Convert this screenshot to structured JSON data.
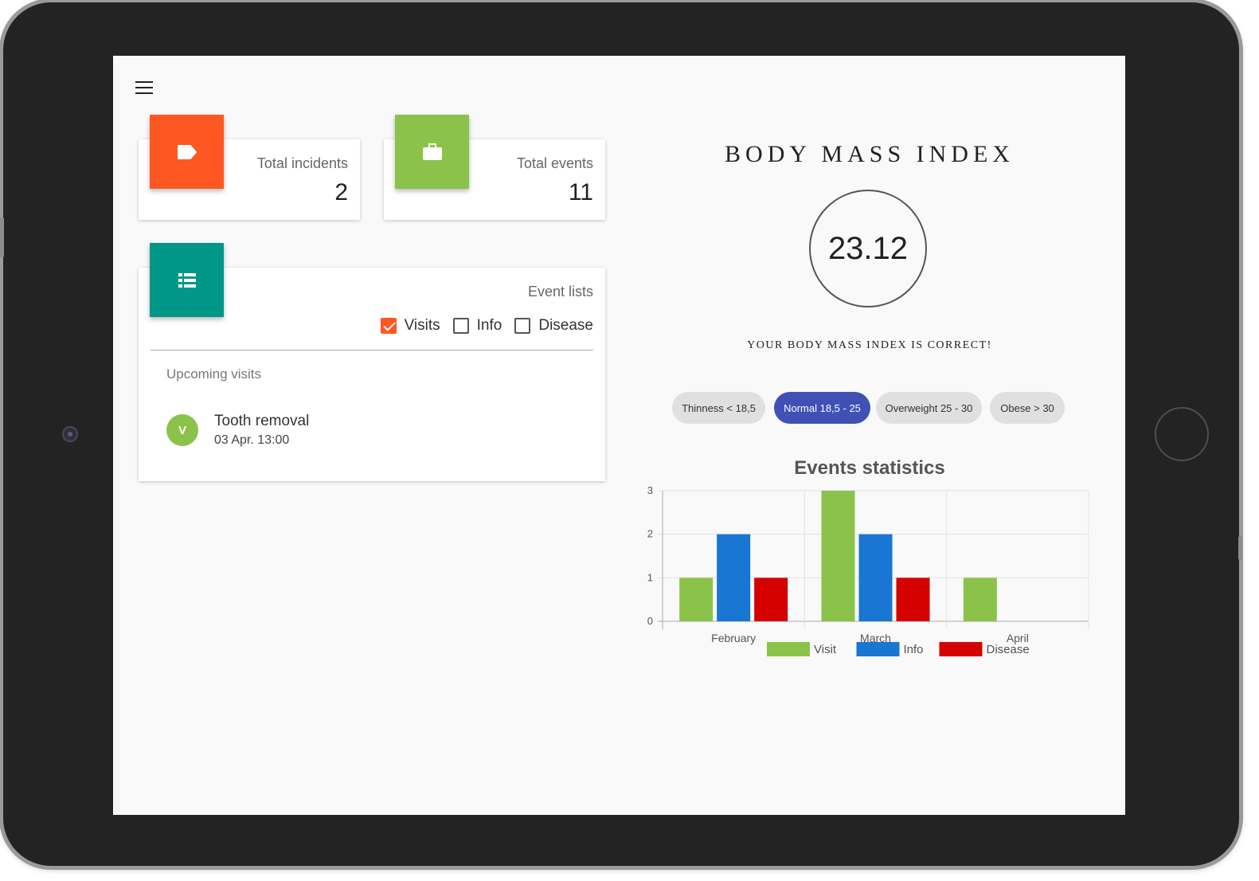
{
  "device": {
    "camera_icon": "camera-icon",
    "home_button_icon": "home-button-icon"
  },
  "header": {
    "menu_icon": "hamburger-menu-icon"
  },
  "stats": [
    {
      "label": "Total incidents",
      "value": "2",
      "icon": "tag-icon",
      "color": "#fe5722"
    },
    {
      "label": "Total events",
      "value": "11",
      "icon": "briefcase-icon",
      "color": "#8bc34a"
    }
  ],
  "event_lists": {
    "title": "Event lists",
    "icon": "list-icon",
    "color": "#009688",
    "filters": [
      {
        "label": "Visits",
        "checked": true
      },
      {
        "label": "Info",
        "checked": false
      },
      {
        "label": "Disease",
        "checked": false
      }
    ],
    "section_title": "Upcoming visits",
    "items": [
      {
        "avatar": "V",
        "avatar_color": "#8bc34a",
        "title": "Tooth removal",
        "time": "03 Apr. 13:00"
      }
    ]
  },
  "bmi": {
    "title": "BODY MASS INDEX",
    "value": "23.12",
    "message": "YOUR BODY MASS INDEX IS CORRECT!",
    "categories": [
      {
        "label": "Thinness < 18,5",
        "active": false
      },
      {
        "label": "Normal 18,5 - 25",
        "active": true
      },
      {
        "label": "Overweight 25 - 30",
        "active": false
      },
      {
        "label": "Obese > 30",
        "active": false
      }
    ],
    "active_color": "#3f51b5"
  },
  "chart_data": {
    "type": "bar",
    "title": "Events statistics",
    "categories": [
      "February",
      "March",
      "April"
    ],
    "series": [
      {
        "name": "Visit",
        "color": "#8bc34a",
        "values": [
          1,
          3,
          1
        ]
      },
      {
        "name": "Info",
        "color": "#1976d2",
        "values": [
          2,
          2,
          0
        ]
      },
      {
        "name": "Disease",
        "color": "#d50000",
        "values": [
          1,
          1,
          0
        ]
      }
    ],
    "yticks": [
      0,
      1,
      2,
      3
    ],
    "ylim": [
      0,
      3
    ],
    "grid": true,
    "legend": "bottom"
  }
}
